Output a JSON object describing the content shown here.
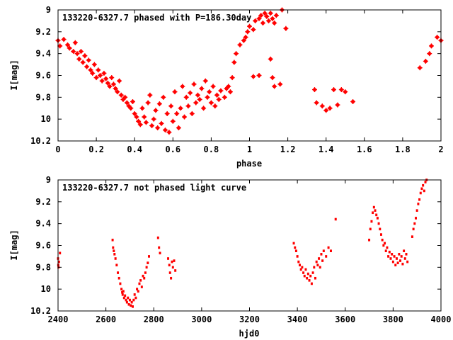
{
  "chart_data": [
    {
      "type": "scatter",
      "title": "133220-6327.7 phased with P=186.30day",
      "xlabel": "phase",
      "ylabel": "I[mag]",
      "xlim": [
        0,
        2
      ],
      "ylim": [
        9,
        10.2
      ],
      "y_inverted": true,
      "x_ticks": [
        "0",
        "0.2",
        "0.4",
        "0.6",
        "0.8",
        "1",
        "1.2",
        "1.4",
        "1.6",
        "1.8",
        "2"
      ],
      "y_ticks": [
        "9",
        "9.2",
        "9.4",
        "9.6",
        "9.8",
        "10",
        "10.2"
      ],
      "marker": "star",
      "color": "#ff0000",
      "grid": false,
      "points": [
        [
          0.0,
          9.28
        ],
        [
          0.01,
          9.33
        ],
        [
          0.03,
          9.27
        ],
        [
          0.05,
          9.32
        ],
        [
          0.06,
          9.35
        ],
        [
          0.08,
          9.38
        ],
        [
          0.09,
          9.3
        ],
        [
          0.1,
          9.4
        ],
        [
          0.11,
          9.45
        ],
        [
          0.12,
          9.38
        ],
        [
          0.13,
          9.48
        ],
        [
          0.14,
          9.42
        ],
        [
          0.15,
          9.52
        ],
        [
          0.16,
          9.46
        ],
        [
          0.17,
          9.55
        ],
        [
          0.18,
          9.58
        ],
        [
          0.19,
          9.5
        ],
        [
          0.2,
          9.62
        ],
        [
          0.21,
          9.55
        ],
        [
          0.22,
          9.6
        ],
        [
          0.23,
          9.65
        ],
        [
          0.24,
          9.58
        ],
        [
          0.25,
          9.63
        ],
        [
          0.26,
          9.67
        ],
        [
          0.27,
          9.7
        ],
        [
          0.28,
          9.62
        ],
        [
          0.29,
          9.68
        ],
        [
          0.3,
          9.72
        ],
        [
          0.31,
          9.75
        ],
        [
          0.32,
          9.65
        ],
        [
          0.33,
          9.78
        ],
        [
          0.34,
          9.82
        ],
        [
          0.35,
          9.8
        ],
        [
          0.36,
          9.85
        ],
        [
          0.37,
          9.88
        ],
        [
          0.38,
          9.9
        ],
        [
          0.39,
          9.84
        ],
        [
          0.4,
          9.95
        ],
        [
          0.41,
          9.98
        ],
        [
          0.42,
          10.02
        ],
        [
          0.43,
          10.05
        ],
        [
          0.44,
          9.9
        ],
        [
          0.45,
          9.98
        ],
        [
          0.46,
          10.03
        ],
        [
          0.47,
          9.85
        ],
        [
          0.48,
          9.78
        ],
        [
          0.49,
          10.06
        ],
        [
          0.5,
          10.0
        ],
        [
          0.51,
          9.92
        ],
        [
          0.52,
          10.08
        ],
        [
          0.53,
          9.86
        ],
        [
          0.54,
          10.04
        ],
        [
          0.55,
          9.8
        ],
        [
          0.56,
          10.1
        ],
        [
          0.57,
          9.95
        ],
        [
          0.58,
          10.12
        ],
        [
          0.59,
          9.88
        ],
        [
          0.6,
          10.02
        ],
        [
          0.61,
          9.75
        ],
        [
          0.62,
          9.95
        ],
        [
          0.63,
          10.08
        ],
        [
          0.64,
          9.9
        ],
        [
          0.65,
          9.7
        ],
        [
          0.66,
          9.98
        ],
        [
          0.67,
          9.8
        ],
        [
          0.68,
          9.88
        ],
        [
          0.69,
          9.76
        ],
        [
          0.7,
          9.95
        ],
        [
          0.71,
          9.68
        ],
        [
          0.72,
          9.85
        ],
        [
          0.73,
          9.78
        ],
        [
          0.74,
          9.82
        ],
        [
          0.75,
          9.72
        ],
        [
          0.76,
          9.9
        ],
        [
          0.77,
          9.65
        ],
        [
          0.78,
          9.8
        ],
        [
          0.79,
          9.75
        ],
        [
          0.8,
          9.85
        ],
        [
          0.81,
          9.7
        ],
        [
          0.82,
          9.88
        ],
        [
          0.83,
          9.78
        ],
        [
          0.84,
          9.82
        ],
        [
          0.85,
          9.74
        ],
        [
          0.87,
          9.8
        ],
        [
          0.88,
          9.72
        ],
        [
          0.89,
          9.7
        ],
        [
          0.9,
          9.75
        ],
        [
          0.91,
          9.62
        ],
        [
          0.92,
          9.48
        ],
        [
          0.93,
          9.4
        ],
        [
          0.95,
          9.32
        ],
        [
          0.97,
          9.28
        ],
        [
          0.98,
          9.25
        ],
        [
          0.99,
          9.2
        ],
        [
          1.0,
          9.15
        ],
        [
          1.02,
          9.18
        ],
        [
          1.03,
          9.1
        ],
        [
          1.05,
          9.08
        ],
        [
          1.06,
          9.05
        ],
        [
          1.07,
          9.12
        ],
        [
          1.08,
          9.03
        ],
        [
          1.09,
          9.06
        ],
        [
          1.1,
          9.1
        ],
        [
          1.11,
          9.03
        ],
        [
          1.12,
          9.08
        ],
        [
          1.13,
          9.12
        ],
        [
          1.14,
          9.05
        ],
        [
          1.17,
          9.0
        ],
        [
          1.19,
          9.17
        ],
        [
          1.05,
          9.6
        ],
        [
          1.02,
          9.61
        ],
        [
          1.11,
          9.45
        ],
        [
          1.12,
          9.62
        ],
        [
          1.13,
          9.7
        ],
        [
          1.16,
          9.68
        ],
        [
          1.34,
          9.73
        ],
        [
          1.35,
          9.85
        ],
        [
          1.38,
          9.88
        ],
        [
          1.4,
          9.92
        ],
        [
          1.42,
          9.9
        ],
        [
          1.44,
          9.73
        ],
        [
          1.46,
          9.87
        ],
        [
          1.48,
          9.73
        ],
        [
          1.5,
          9.75
        ],
        [
          1.54,
          9.84
        ],
        [
          1.89,
          9.53
        ],
        [
          1.92,
          9.47
        ],
        [
          1.94,
          9.4
        ],
        [
          1.95,
          9.33
        ],
        [
          1.98,
          9.25
        ],
        [
          2.0,
          9.28
        ]
      ]
    },
    {
      "type": "scatter",
      "title": "133220-6327.7 not phased light curve",
      "xlabel": "hjd0",
      "ylabel": "I[mag]",
      "xlim": [
        2400,
        4000
      ],
      "ylim": [
        9,
        10.2
      ],
      "y_inverted": true,
      "x_ticks": [
        "2400",
        "2600",
        "2800",
        "3000",
        "3200",
        "3400",
        "3600",
        "3800",
        "4000"
      ],
      "y_ticks": [
        "9",
        "9.2",
        "9.4",
        "9.6",
        "9.8",
        "10",
        "10.2"
      ],
      "marker": "dot",
      "color": "#ff0000",
      "grid": false,
      "points": [
        [
          2400,
          9.72
        ],
        [
          2401,
          9.78
        ],
        [
          2402,
          9.8
        ],
        [
          2404,
          9.75
        ],
        [
          2408,
          9.67
        ],
        [
          2628,
          9.55
        ],
        [
          2630,
          9.62
        ],
        [
          2633,
          9.65
        ],
        [
          2636,
          9.68
        ],
        [
          2640,
          9.72
        ],
        [
          2645,
          9.78
        ],
        [
          2650,
          9.85
        ],
        [
          2655,
          9.9
        ],
        [
          2660,
          9.95
        ],
        [
          2665,
          10.0
        ],
        [
          2668,
          10.03
        ],
        [
          2670,
          10.05
        ],
        [
          2673,
          10.02
        ],
        [
          2676,
          10.08
        ],
        [
          2680,
          10.06
        ],
        [
          2684,
          10.1
        ],
        [
          2688,
          10.12
        ],
        [
          2692,
          10.08
        ],
        [
          2696,
          10.14
        ],
        [
          2700,
          10.1
        ],
        [
          2704,
          10.15
        ],
        [
          2708,
          10.12
        ],
        [
          2712,
          10.16
        ],
        [
          2716,
          10.1
        ],
        [
          2720,
          10.05
        ],
        [
          2725,
          10.08
        ],
        [
          2730,
          10.0
        ],
        [
          2735,
          10.02
        ],
        [
          2740,
          9.95
        ],
        [
          2745,
          9.92
        ],
        [
          2750,
          9.98
        ],
        [
          2755,
          9.88
        ],
        [
          2760,
          9.9
        ],
        [
          2765,
          9.85
        ],
        [
          2770,
          9.8
        ],
        [
          2775,
          9.76
        ],
        [
          2780,
          9.7
        ],
        [
          2818,
          9.53
        ],
        [
          2822,
          9.62
        ],
        [
          2826,
          9.67
        ],
        [
          2860,
          9.72
        ],
        [
          2865,
          9.78
        ],
        [
          2868,
          9.85
        ],
        [
          2872,
          9.9
        ],
        [
          2876,
          9.75
        ],
        [
          2880,
          9.8
        ],
        [
          2885,
          9.74
        ],
        [
          2890,
          9.83
        ],
        [
          3385,
          9.58
        ],
        [
          3390,
          9.62
        ],
        [
          3395,
          9.65
        ],
        [
          3400,
          9.7
        ],
        [
          3405,
          9.75
        ],
        [
          3410,
          9.78
        ],
        [
          3415,
          9.82
        ],
        [
          3420,
          9.8
        ],
        [
          3425,
          9.85
        ],
        [
          3430,
          9.88
        ],
        [
          3435,
          9.82
        ],
        [
          3440,
          9.9
        ],
        [
          3445,
          9.86
        ],
        [
          3450,
          9.92
        ],
        [
          3455,
          9.88
        ],
        [
          3460,
          9.95
        ],
        [
          3465,
          9.85
        ],
        [
          3470,
          9.8
        ],
        [
          3475,
          9.9
        ],
        [
          3480,
          9.75
        ],
        [
          3485,
          9.78
        ],
        [
          3490,
          9.72
        ],
        [
          3495,
          9.8
        ],
        [
          3500,
          9.68
        ],
        [
          3505,
          9.74
        ],
        [
          3510,
          9.65
        ],
        [
          3520,
          9.7
        ],
        [
          3530,
          9.62
        ],
        [
          3540,
          9.65
        ],
        [
          3560,
          9.36
        ],
        [
          3700,
          9.55
        ],
        [
          3705,
          9.45
        ],
        [
          3710,
          9.38
        ],
        [
          3715,
          9.3
        ],
        [
          3720,
          9.25
        ],
        [
          3725,
          9.28
        ],
        [
          3730,
          9.32
        ],
        [
          3735,
          9.35
        ],
        [
          3740,
          9.4
        ],
        [
          3745,
          9.45
        ],
        [
          3750,
          9.5
        ],
        [
          3755,
          9.55
        ],
        [
          3760,
          9.6
        ],
        [
          3765,
          9.58
        ],
        [
          3770,
          9.65
        ],
        [
          3775,
          9.62
        ],
        [
          3780,
          9.7
        ],
        [
          3785,
          9.66
        ],
        [
          3790,
          9.72
        ],
        [
          3795,
          9.68
        ],
        [
          3800,
          9.75
        ],
        [
          3805,
          9.7
        ],
        [
          3810,
          9.78
        ],
        [
          3815,
          9.72
        ],
        [
          3820,
          9.76
        ],
        [
          3825,
          9.68
        ],
        [
          3830,
          9.74
        ],
        [
          3835,
          9.7
        ],
        [
          3840,
          9.77
        ],
        [
          3845,
          9.65
        ],
        [
          3850,
          9.72
        ],
        [
          3855,
          9.68
        ],
        [
          3860,
          9.75
        ],
        [
          3880,
          9.52
        ],
        [
          3885,
          9.45
        ],
        [
          3890,
          9.4
        ],
        [
          3895,
          9.35
        ],
        [
          3900,
          9.28
        ],
        [
          3905,
          9.22
        ],
        [
          3910,
          9.18
        ],
        [
          3915,
          9.12
        ],
        [
          3920,
          9.08
        ],
        [
          3925,
          9.05
        ],
        [
          3930,
          9.1
        ],
        [
          3935,
          9.02
        ],
        [
          3940,
          9.0
        ]
      ]
    }
  ]
}
